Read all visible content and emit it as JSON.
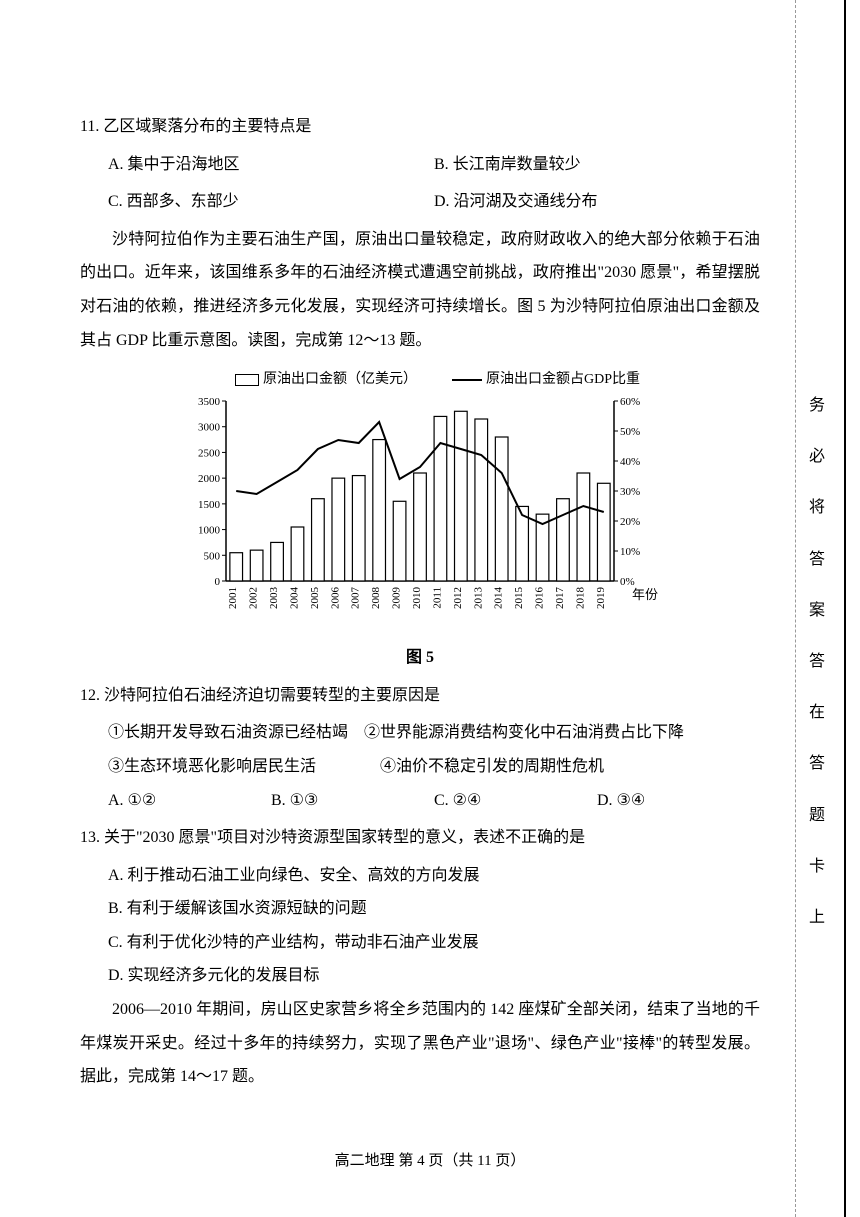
{
  "q11": {
    "stem": "11. 乙区域聚落分布的主要特点是",
    "optA": "A. 集中于沿海地区",
    "optB": "B. 长江南岸数量较少",
    "optC": "C. 西部多、东部少",
    "optD": "D. 沿河湖及交通线分布"
  },
  "passage1": "沙特阿拉伯作为主要石油生产国，原油出口量较稳定，政府财政收入的绝大部分依赖于石油的出口。近年来，该国维系多年的石油经济模式遭遇空前挑战，政府推出\"2030 愿景\"，希望摆脱对石油的依赖，推进经济多元化发展，实现经济可持续增长。图 5 为沙特阿拉伯原油出口金额及其占 GDP 比重示意图。读图，完成第 12～13 题。",
  "chart": {
    "legend_bar": "原油出口金额（亿美元）",
    "legend_line": "原油出口金额占GDP比重",
    "caption": "图 5",
    "xlabel": "年份",
    "y1_ticks": [
      "0",
      "500",
      "1000",
      "1500",
      "2000",
      "2500",
      "3000",
      "3500"
    ],
    "y1_max": 3500,
    "y2_ticks": [
      "0%",
      "10%",
      "20%",
      "30%",
      "40%",
      "50%",
      "60%"
    ],
    "y2_max": 60,
    "years": [
      "2001",
      "2002",
      "2003",
      "2004",
      "2005",
      "2006",
      "2007",
      "2008",
      "2009",
      "2010",
      "2011",
      "2012",
      "2013",
      "2014",
      "2015",
      "2016",
      "2017",
      "2018",
      "2019"
    ],
    "bar_values": [
      550,
      600,
      750,
      1050,
      1600,
      2000,
      2050,
      2750,
      1550,
      2100,
      3200,
      3300,
      3150,
      2800,
      1450,
      1300,
      1600,
      2100,
      1900
    ],
    "line_percent": [
      30,
      29,
      33,
      37,
      44,
      47,
      46,
      53,
      34,
      38,
      46,
      44,
      42,
      36,
      22,
      19,
      22,
      25,
      23
    ],
    "bar_fill": "#ffffff",
    "bar_stroke": "#000000",
    "line_stroke": "#000000",
    "axis_color": "#000000",
    "tick_fontsize": 11,
    "label_fontsize": 13
  },
  "q12": {
    "stem": "12. 沙特阿拉伯石油经济迫切需要转型的主要原因是",
    "s1": "①长期开发导致石油资源已经枯竭",
    "s2": "②世界能源消费结构变化中石油消费占比下降",
    "s3": "③生态环境恶化影响居民生活",
    "s4": "④油价不稳定引发的周期性危机",
    "optA": "A. ①②",
    "optB": "B. ①③",
    "optC": "C. ②④",
    "optD": "D. ③④"
  },
  "q13": {
    "stem": "13. 关于\"2030 愿景\"项目对沙特资源型国家转型的意义，表述不正确的是",
    "optA": "A. 利于推动石油工业向绿色、安全、高效的方向发展",
    "optB": "B. 有利于缓解该国水资源短缺的问题",
    "optC": "C. 有利于优化沙特的产业结构，带动非石油产业发展",
    "optD": "D. 实现经济多元化的发展目标"
  },
  "passage2": "2006—2010 年期间，房山区史家营乡将全乡范围内的 142 座煤矿全部关闭，结束了当地的千年煤炭开采史。经过十多年的持续努力，实现了黑色产业\"退场\"、绿色产业\"接棒\"的转型发展。据此，完成第 14～17 题。",
  "footer": "高二地理 第 4 页（共 11 页）",
  "side": "务必将答案答在答题卡上"
}
